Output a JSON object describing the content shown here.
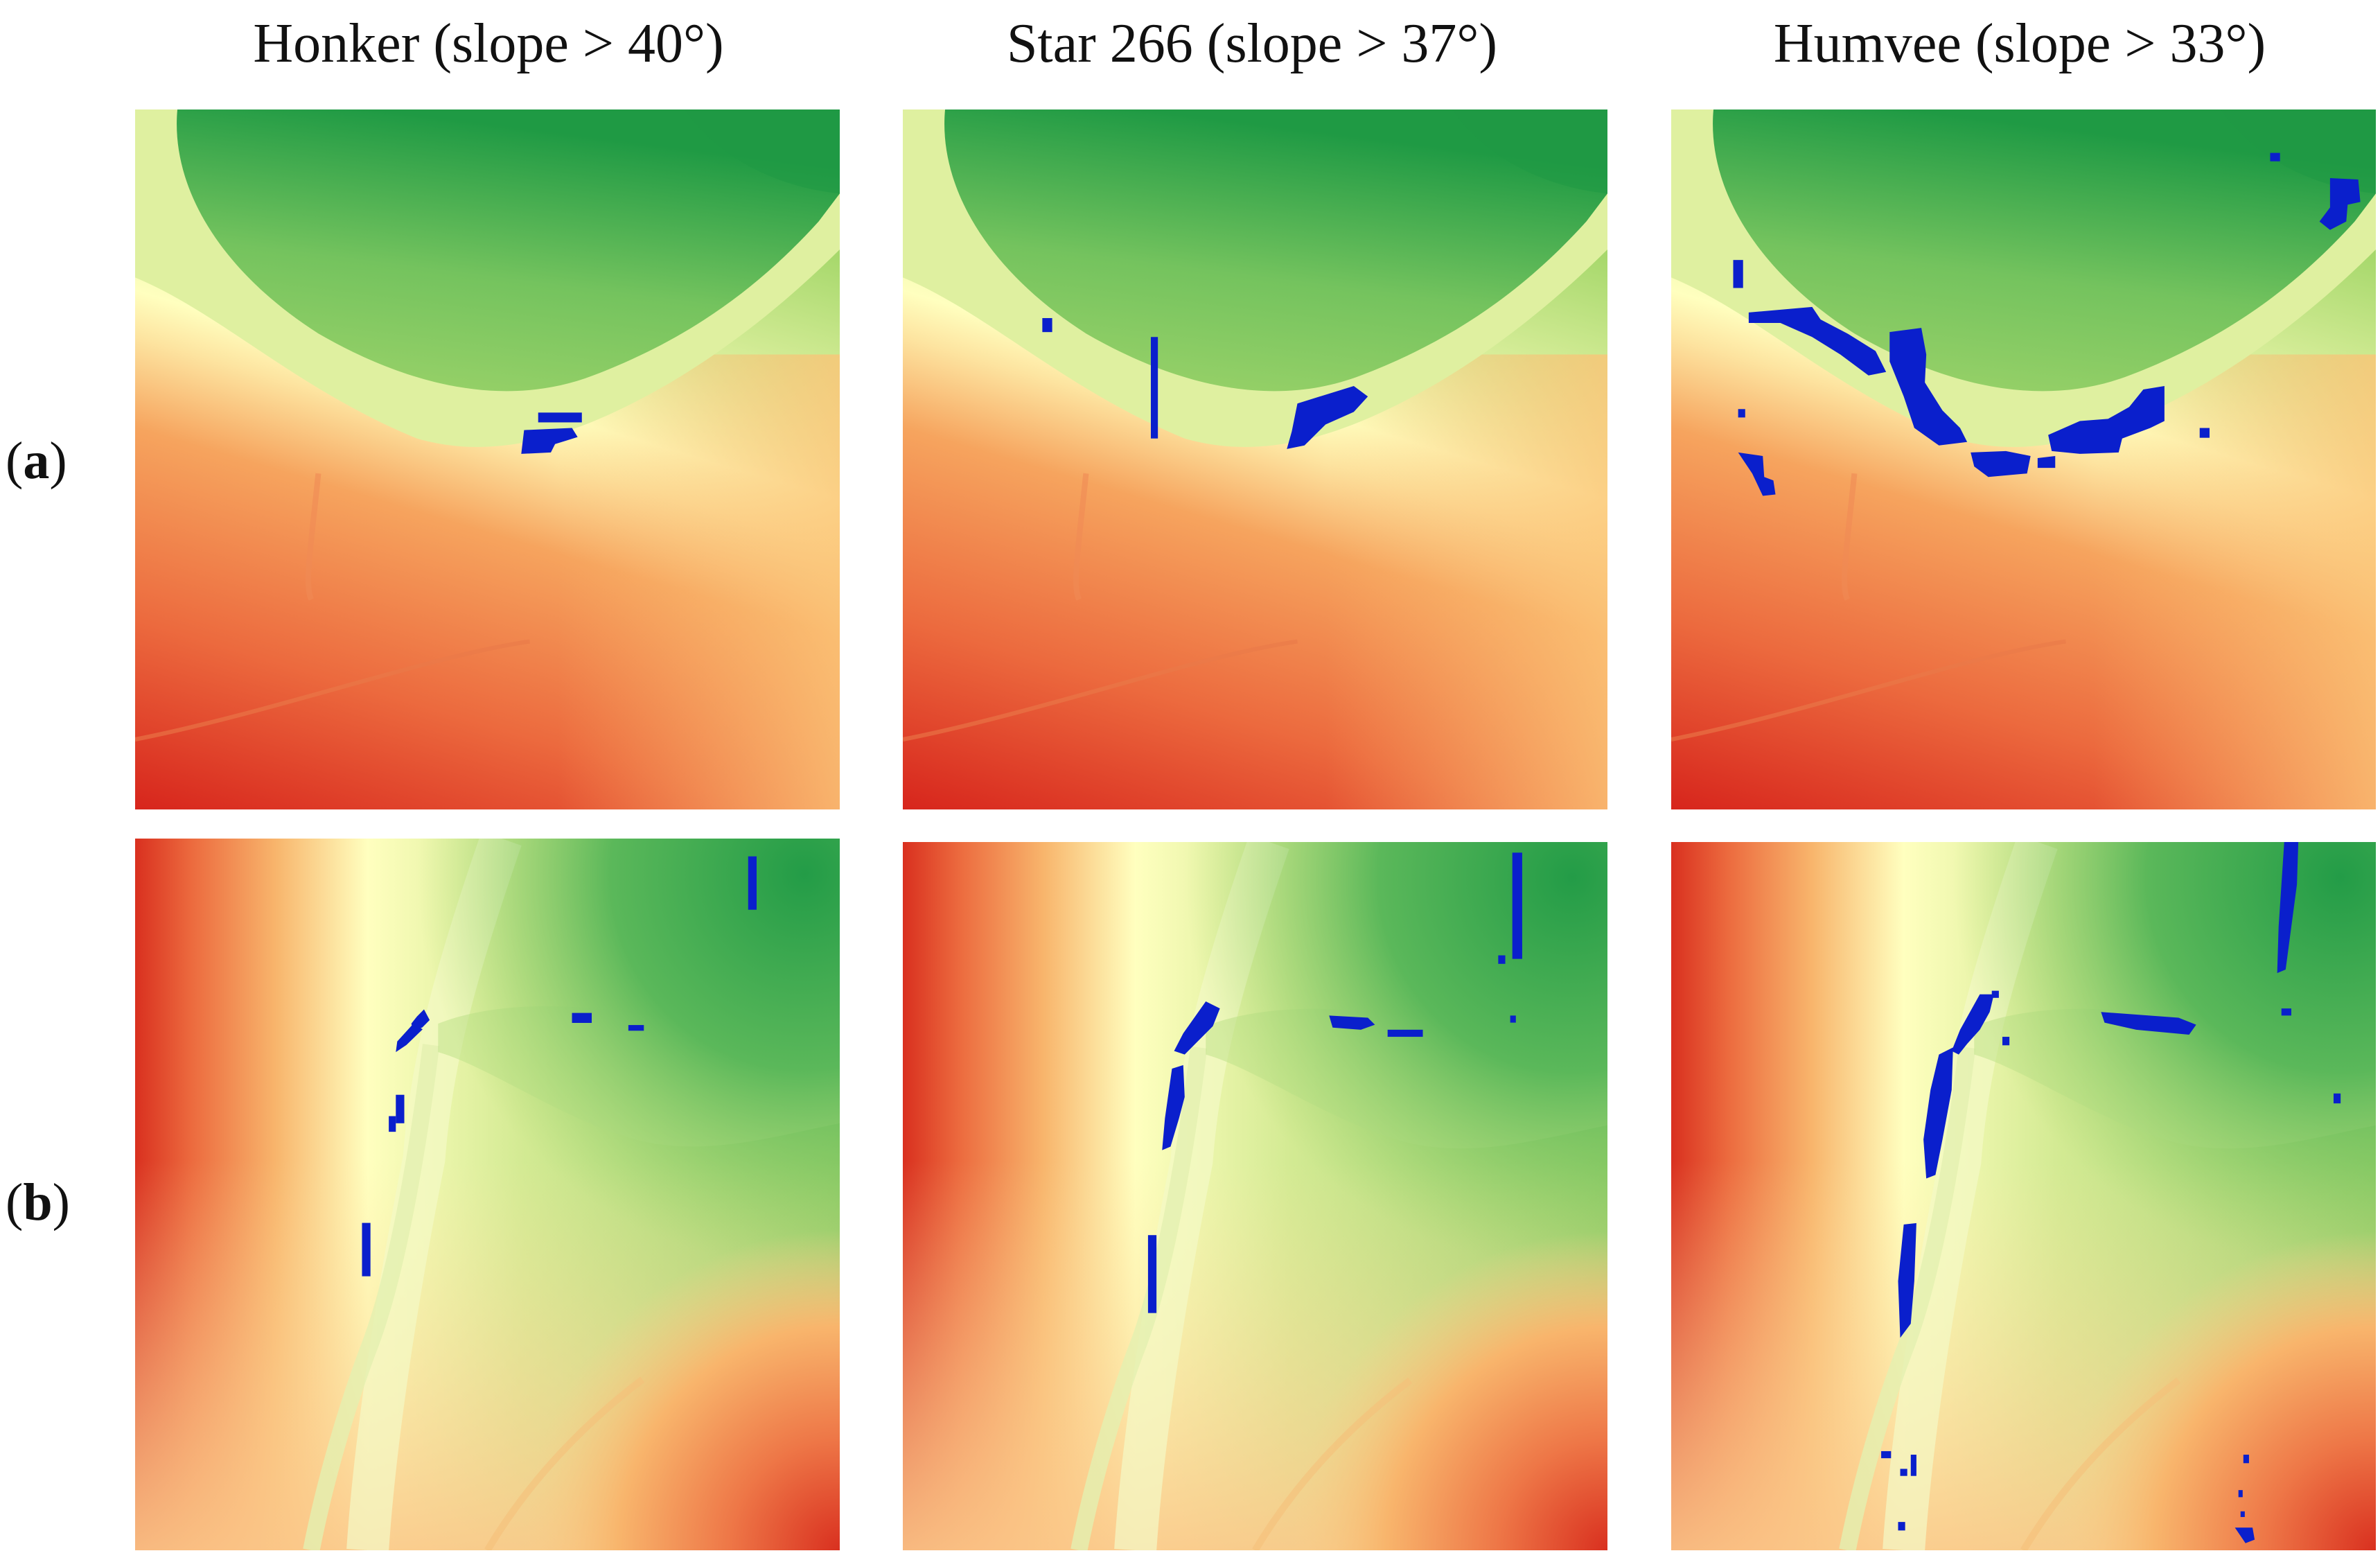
{
  "columns": [
    {
      "title": "Honker (slope > 40°)"
    },
    {
      "title": "Star 266 (slope > 37°)"
    },
    {
      "title": "Humvee (slope > 33°)"
    }
  ],
  "rows": [
    {
      "open": "(",
      "letter": "a",
      "close": ")"
    },
    {
      "open": "(",
      "letter": "b",
      "close": ")"
    }
  ],
  "colors": {
    "high_terrain": "#1a9641",
    "mid_terrain": "#ffffbf",
    "low_terrain": "#d7191c",
    "impassable_slope": "#0a1fcc"
  }
}
